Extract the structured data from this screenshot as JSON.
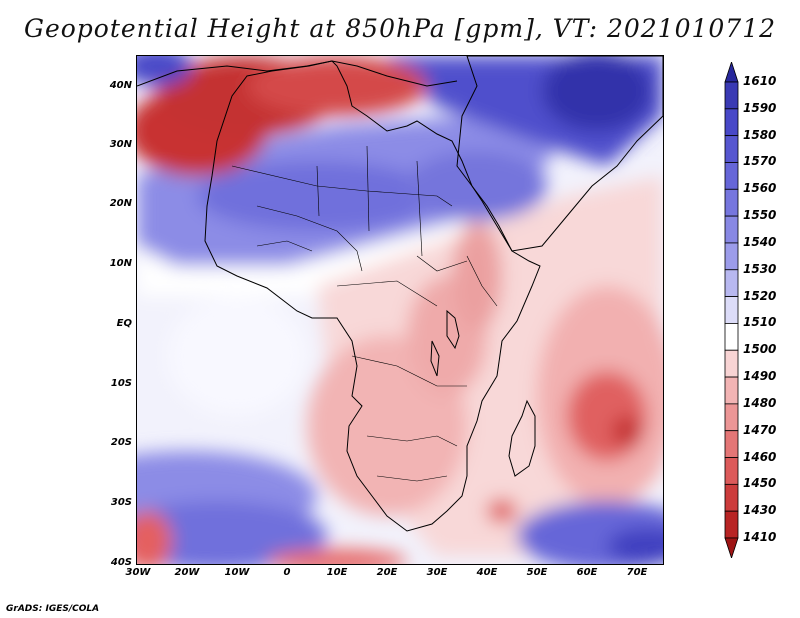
{
  "title": "Geopotential Height at 850hPa [gpm], VT: 2021010712",
  "credit": "GrADS: IGES/COLA",
  "map": {
    "variable": "Geopotential height",
    "level": "850hPa",
    "units": "gpm",
    "valid_time": "2021010712",
    "region": "Africa",
    "lat_labels": [
      "40N",
      "30N",
      "20N",
      "10N",
      "EQ",
      "10S",
      "20S",
      "30S",
      "40S"
    ],
    "lon_labels": [
      "30W",
      "20W",
      "10W",
      "0",
      "10E",
      "20E",
      "30E",
      "40E",
      "50E",
      "60E",
      "70E"
    ]
  },
  "colorbar": {
    "labels": [
      "1610",
      "1590",
      "1580",
      "1570",
      "1560",
      "1550",
      "1540",
      "1530",
      "1520",
      "1510",
      "1500",
      "1490",
      "1480",
      "1470",
      "1460",
      "1450",
      "1430",
      "1410"
    ],
    "colors": [
      "#28289c",
      "#3a3ab4",
      "#4848c8",
      "#5656d0",
      "#6666d8",
      "#7676de",
      "#8888e4",
      "#9c9cea",
      "#b8b8f0",
      "#dcdcf8",
      "#ffffff",
      "#f8d4d4",
      "#f2b4b4",
      "#ec9696",
      "#e47676",
      "#dc5a5a",
      "#cc3c3c",
      "#b82424",
      "#9e1414"
    ]
  }
}
